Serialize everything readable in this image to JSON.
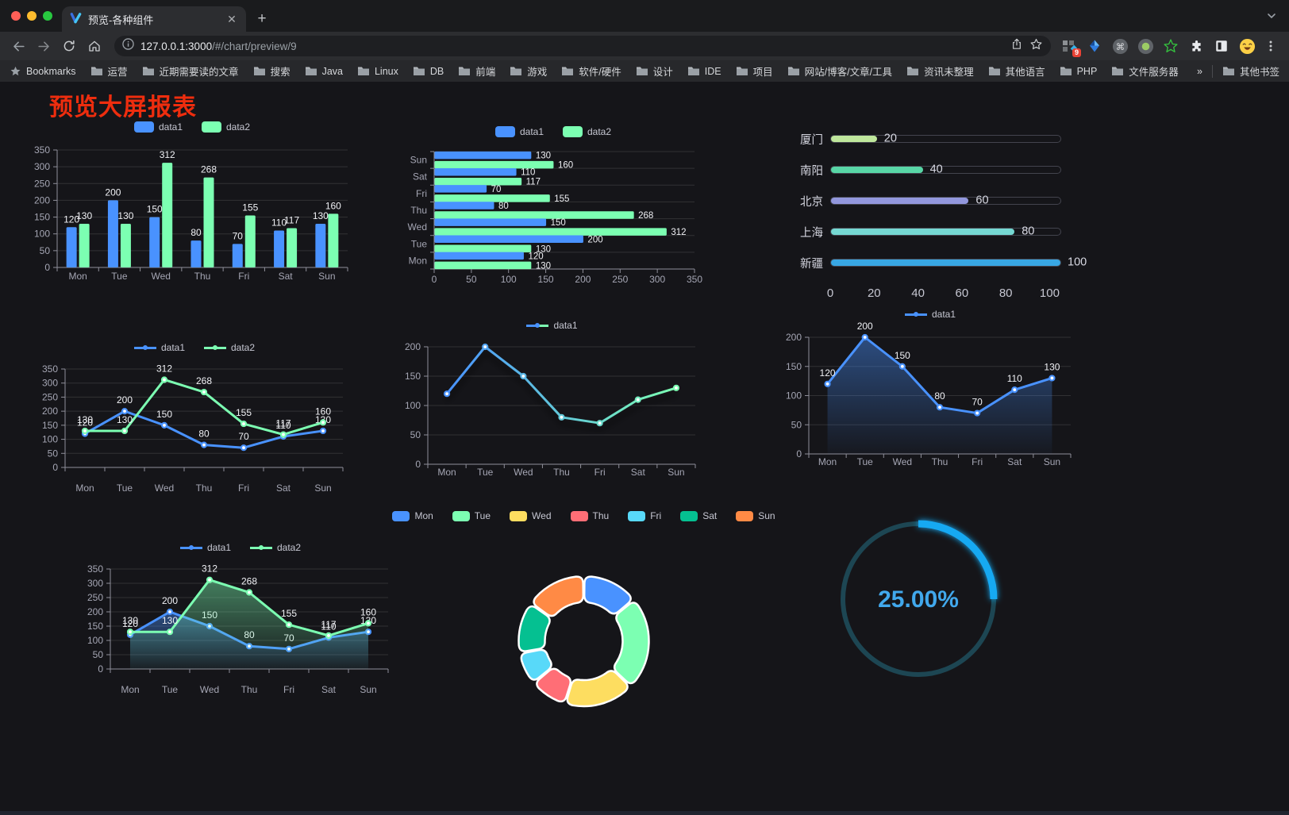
{
  "browser": {
    "tab_title": "预览-各种组件",
    "url_host": "127.0.0.1:3000",
    "url_path": "/#/chart/preview/9",
    "bookmarks_label": "Bookmarks",
    "bookmark_folders": [
      "运营",
      "近期需要读的文章",
      "搜索",
      "Java",
      "Linux",
      "DB",
      "前端",
      "游戏",
      "软件/硬件",
      "设计",
      "IDE",
      "项目",
      "网站/博客/文章/工具",
      "资讯未整理",
      "其他语言",
      "PHP",
      "文件服务器"
    ],
    "bookmarks_overflow": "»",
    "other_bookmarks": "其他书签",
    "extension_badge": "9"
  },
  "page": {
    "title": "预览大屏报表"
  },
  "chart_data": [
    {
      "id": "c1",
      "name": "grouped-bar-chart",
      "type": "bar",
      "categories": [
        "Mon",
        "Tue",
        "Wed",
        "Thu",
        "Fri",
        "Sat",
        "Sun"
      ],
      "series": [
        {
          "name": "data1",
          "color": "#4992ff",
          "values": [
            120,
            200,
            150,
            80,
            70,
            110,
            130
          ]
        },
        {
          "name": "data2",
          "color": "#7cffb2",
          "values": [
            130,
            130,
            312,
            268,
            155,
            117,
            160
          ]
        }
      ],
      "ylim": [
        0,
        350
      ],
      "yticks": [
        0,
        50,
        100,
        150,
        200,
        250,
        300,
        350
      ],
      "labels": true,
      "legend_position": "top",
      "grid": true
    },
    {
      "id": "c2",
      "name": "horizontal-bar-chart",
      "type": "hbar",
      "categories": [
        "Mon",
        "Tue",
        "Wed",
        "Thu",
        "Fri",
        "Sat",
        "Sun"
      ],
      "series": [
        {
          "name": "data1",
          "color": "#4992ff",
          "values": [
            120,
            200,
            150,
            80,
            70,
            110,
            130
          ]
        },
        {
          "name": "data2",
          "color": "#7cffb2",
          "values": [
            130,
            130,
            312,
            268,
            155,
            117,
            160
          ]
        }
      ],
      "xlim": [
        0,
        350
      ],
      "xticks": [
        0,
        50,
        100,
        150,
        200,
        250,
        300,
        350
      ],
      "labels": true,
      "legend_position": "top",
      "grid": true
    },
    {
      "id": "c3",
      "name": "progress-bar-chart",
      "type": "progress",
      "items": [
        {
          "label": "厦门",
          "value": 20,
          "color": "#bfe79c"
        },
        {
          "label": "南阳",
          "value": 40,
          "color": "#58d6a6"
        },
        {
          "label": "北京",
          "value": 60,
          "color": "#9297dd"
        },
        {
          "label": "上海",
          "value": 80,
          "color": "#75d8d2"
        },
        {
          "label": "新疆",
          "value": 100,
          "color": "#38a7e4"
        }
      ],
      "max": 100,
      "xticks": [
        0,
        20,
        40,
        60,
        80,
        100
      ]
    },
    {
      "id": "c4",
      "name": "multi-line-chart",
      "type": "line",
      "categories": [
        "Mon",
        "Tue",
        "Wed",
        "Thu",
        "Fri",
        "Sat",
        "Sun"
      ],
      "series": [
        {
          "name": "data1",
          "color": "#4992ff",
          "values": [
            120,
            200,
            150,
            80,
            70,
            110,
            130
          ]
        },
        {
          "name": "data2",
          "color": "#7cffb2",
          "values": [
            130,
            130,
            312,
            268,
            155,
            117,
            160
          ]
        }
      ],
      "ylim": [
        0,
        350
      ],
      "yticks": [
        0,
        50,
        100,
        150,
        200,
        250,
        300,
        350
      ],
      "labels": true,
      "legend_position": "top",
      "grid": true
    },
    {
      "id": "c5",
      "name": "gradient-line-chart",
      "type": "line",
      "categories": [
        "Mon",
        "Tue",
        "Wed",
        "Thu",
        "Fri",
        "Sat",
        "Sun"
      ],
      "series": [
        {
          "name": "data1",
          "gradient": [
            "#4992ff",
            "#7cffb2"
          ],
          "values": [
            120,
            200,
            150,
            80,
            70,
            110,
            130
          ],
          "shadow": true
        }
      ],
      "ylim": [
        0,
        200
      ],
      "yticks": [
        0,
        50,
        100,
        150,
        200
      ],
      "labels": false,
      "legend_position": "top",
      "grid": true
    },
    {
      "id": "c6",
      "name": "area-line-chart",
      "type": "line",
      "categories": [
        "Mon",
        "Tue",
        "Wed",
        "Thu",
        "Fri",
        "Sat",
        "Sun"
      ],
      "series": [
        {
          "name": "data1",
          "color": "#4992ff",
          "values": [
            120,
            200,
            150,
            80,
            70,
            110,
            130
          ],
          "area": true
        }
      ],
      "ylim": [
        0,
        200
      ],
      "yticks": [
        0,
        50,
        100,
        150,
        200
      ],
      "labels": true,
      "legend_position": "top",
      "grid": true
    },
    {
      "id": "c7",
      "name": "multi-area-line-chart",
      "type": "line",
      "categories": [
        "Mon",
        "Tue",
        "Wed",
        "Thu",
        "Fri",
        "Sat",
        "Sun"
      ],
      "series": [
        {
          "name": "data1",
          "color": "#4992ff",
          "values": [
            120,
            200,
            150,
            80,
            70,
            110,
            130
          ],
          "area": true
        },
        {
          "name": "data2",
          "color": "#7cffb2",
          "values": [
            130,
            130,
            312,
            268,
            155,
            117,
            160
          ],
          "area": true
        }
      ],
      "ylim": [
        0,
        350
      ],
      "yticks": [
        0,
        50,
        100,
        150,
        200,
        250,
        300,
        350
      ],
      "labels": true,
      "legend_position": "top",
      "grid": true
    },
    {
      "id": "c8",
      "name": "donut-chart",
      "type": "pie",
      "categories": [
        "Mon",
        "Tue",
        "Wed",
        "Thu",
        "Fri",
        "Sat",
        "Sun"
      ],
      "values": [
        120,
        200,
        150,
        80,
        70,
        110,
        130
      ],
      "colors": [
        "#4992ff",
        "#7cffb2",
        "#fddd60",
        "#ff6e76",
        "#58d9f9",
        "#05c091",
        "#ff8a45"
      ],
      "inner_radius": 49,
      "outer_radius": 82,
      "legend_position": "top"
    },
    {
      "id": "c9",
      "name": "gauge-chart",
      "type": "gauge",
      "value": 25,
      "label": "25.00%",
      "color": "#19a9f2",
      "track_color": "#1d4653",
      "text_color": "#41a8ec"
    }
  ]
}
